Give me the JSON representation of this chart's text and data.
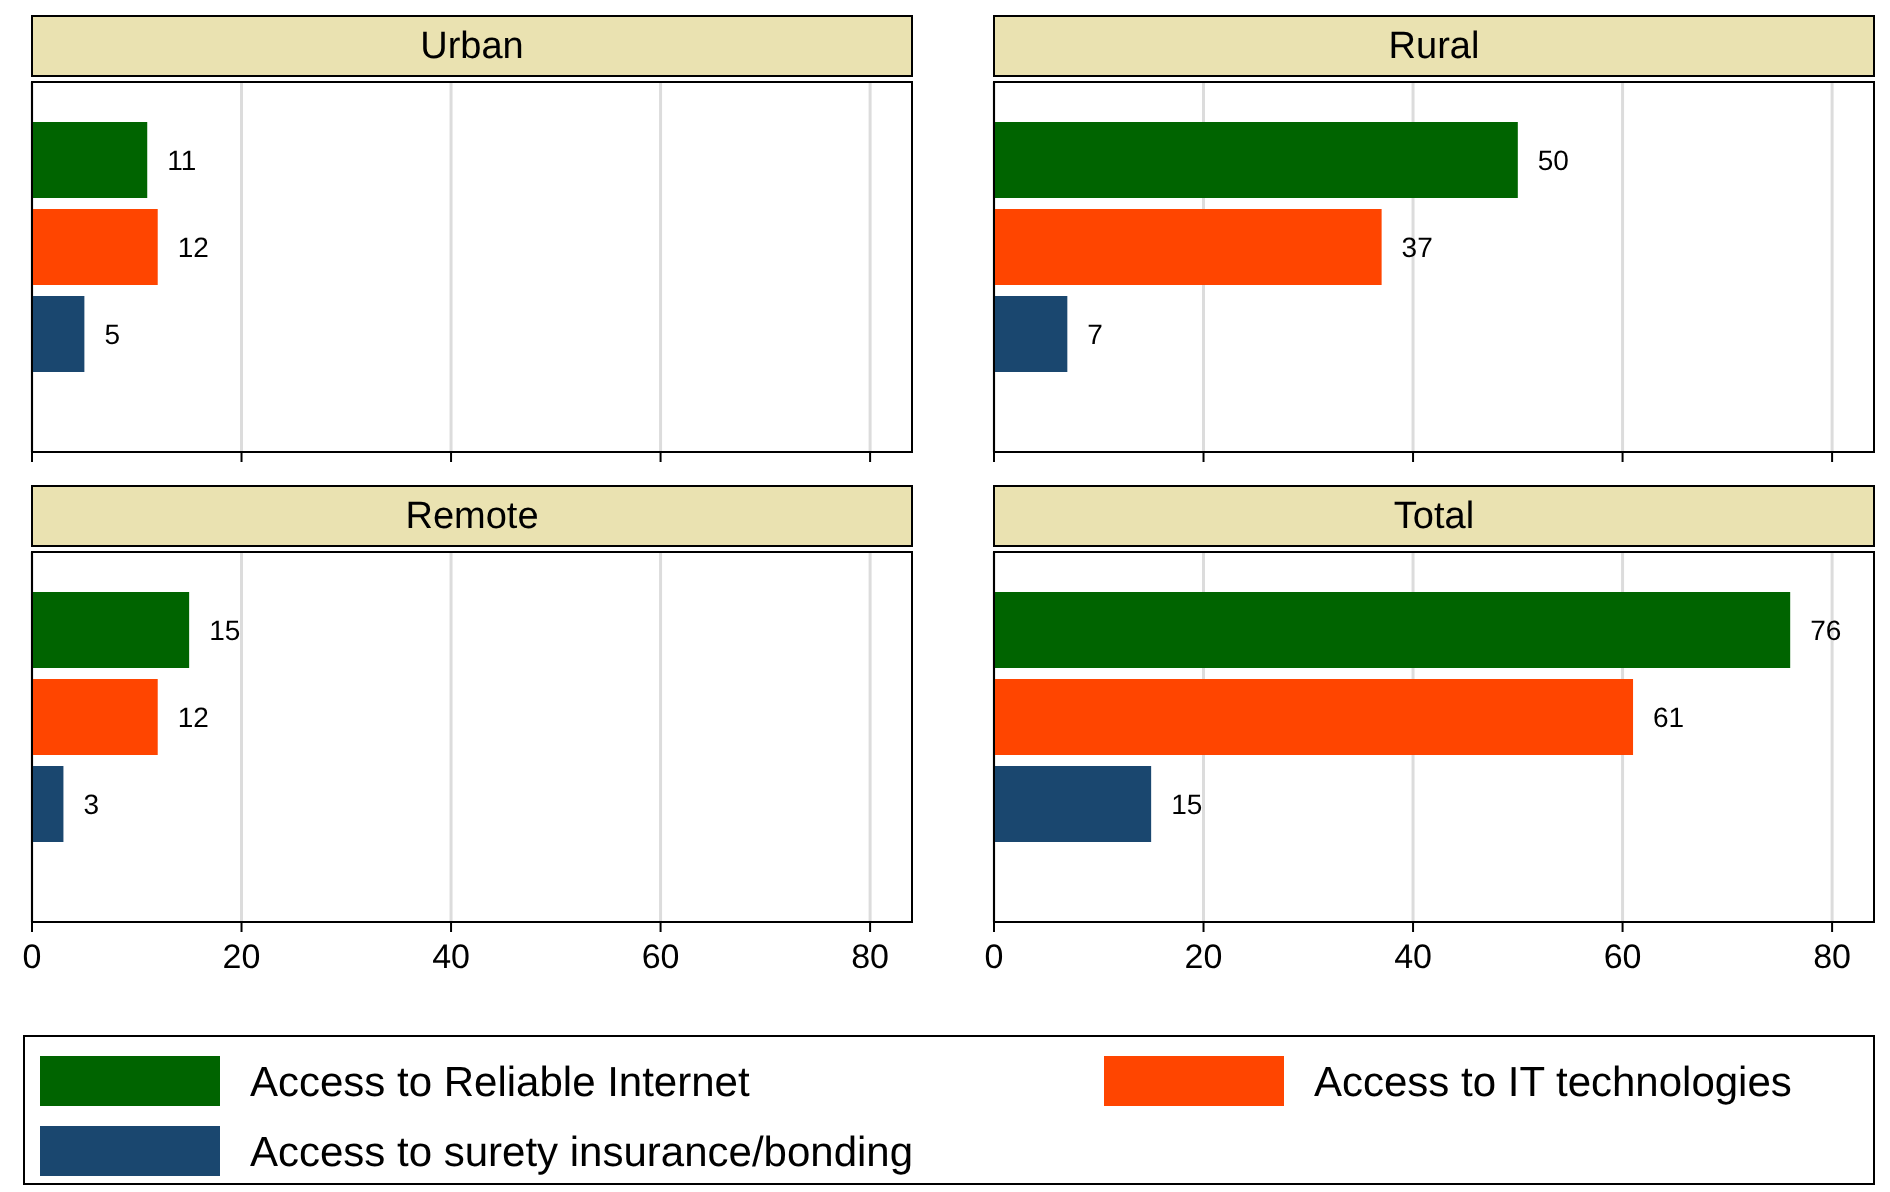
{
  "chart_data": [
    {
      "type": "bar",
      "orientation": "horizontal",
      "title": "Urban",
      "categories": [
        null
      ],
      "xlim": [
        0,
        84
      ],
      "xticks": [
        0,
        20,
        40,
        60,
        80
      ],
      "grid": "x",
      "tick_labels": false,
      "data_labels": true,
      "legend": "bottom",
      "series": [
        {
          "name": "Access to Reliable Internet",
          "color": "#006400",
          "values": [
            11
          ]
        },
        {
          "name": "Access to IT technologies",
          "color": "#ff4500",
          "values": [
            12
          ]
        },
        {
          "name": "Access to surety insurance/bonding",
          "color": "#1a476f",
          "values": [
            5
          ]
        }
      ]
    },
    {
      "type": "bar",
      "orientation": "horizontal",
      "title": "Rural",
      "categories": [
        null
      ],
      "xlim": [
        0,
        84
      ],
      "xticks": [
        0,
        20,
        40,
        60,
        80
      ],
      "grid": "x",
      "tick_labels": false,
      "data_labels": true,
      "series": [
        {
          "color": "#006400",
          "values": [
            50
          ]
        },
        {
          "color": "#ff4500",
          "values": [
            37
          ]
        },
        {
          "color": "#1a476f",
          "values": [
            7
          ]
        }
      ]
    },
    {
      "type": "bar",
      "orientation": "horizontal",
      "title": "Remote",
      "categories": [
        null
      ],
      "xlim": [
        0,
        84
      ],
      "xticks": [
        0,
        20,
        40,
        60,
        80
      ],
      "grid": "x",
      "tick_labels": "x",
      "data_labels": true,
      "series": [
        {
          "color": "#006400",
          "values": [
            15
          ]
        },
        {
          "color": "#ff4500",
          "values": [
            12
          ]
        },
        {
          "color": "#1a476f",
          "values": [
            3
          ]
        }
      ]
    },
    {
      "type": "bar",
      "orientation": "horizontal",
      "title": "Total",
      "categories": [
        null
      ],
      "xlim": [
        0,
        84
      ],
      "xticks": [
        0,
        20,
        40,
        60,
        80
      ],
      "grid": "x",
      "tick_labels": "x",
      "data_labels": true,
      "series": [
        {
          "color": "#006400",
          "values": [
            76
          ]
        },
        {
          "color": "#ff4500",
          "values": [
            61
          ]
        },
        {
          "color": "#1a476f",
          "values": [
            15
          ]
        }
      ]
    }
  ]
}
